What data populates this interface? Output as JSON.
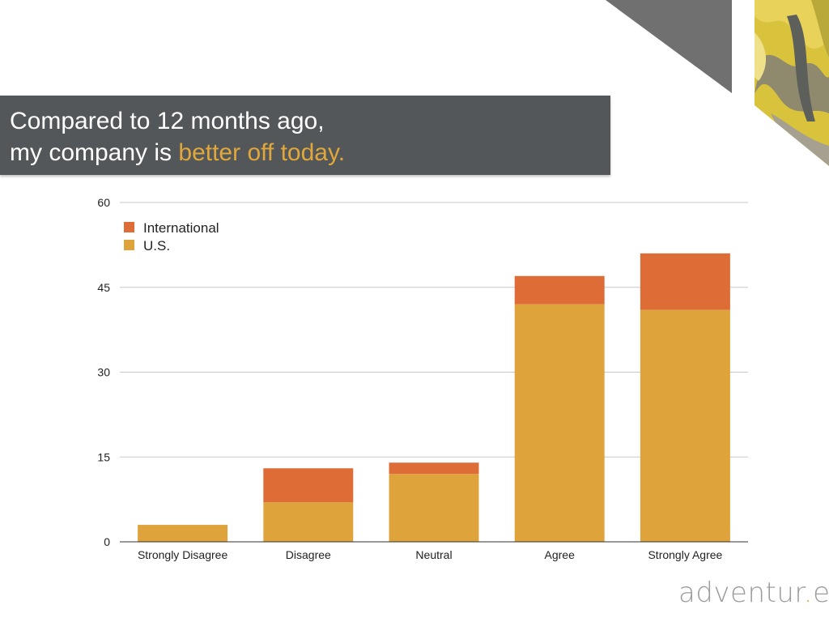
{
  "slide": {
    "title_line1": "Compared to 12 months ago,",
    "title_line2_prefix": "my company is ",
    "title_line2_highlight": "better off today."
  },
  "brand": {
    "text_before": "adventur",
    "text_accent": ".",
    "text_after": "es"
  },
  "colors": {
    "title_band": "#545759",
    "accent": "#e0a83a",
    "us": "#dea43b",
    "international": "#de6c37",
    "gridline": "#c8c8c8",
    "corner_triangle": "#707070"
  },
  "chart_data": {
    "type": "bar",
    "stacked": true,
    "categories": [
      "Strongly Disagree",
      "Disagree",
      "Neutral",
      "Agree",
      "Strongly Agree"
    ],
    "series": [
      {
        "name": "U.S.",
        "values": [
          3,
          7,
          12,
          42,
          41
        ],
        "color": "#dea43b"
      },
      {
        "name": "International",
        "values": [
          0,
          6,
          2,
          5,
          10
        ],
        "color": "#de6c37"
      }
    ],
    "yticks": [
      0,
      15,
      30,
      45,
      60
    ],
    "ylim": [
      0,
      60
    ],
    "legend": [
      "International",
      "U.S."
    ],
    "legend_position": "top-left",
    "grid": true,
    "title": "",
    "xlabel": "",
    "ylabel": ""
  }
}
